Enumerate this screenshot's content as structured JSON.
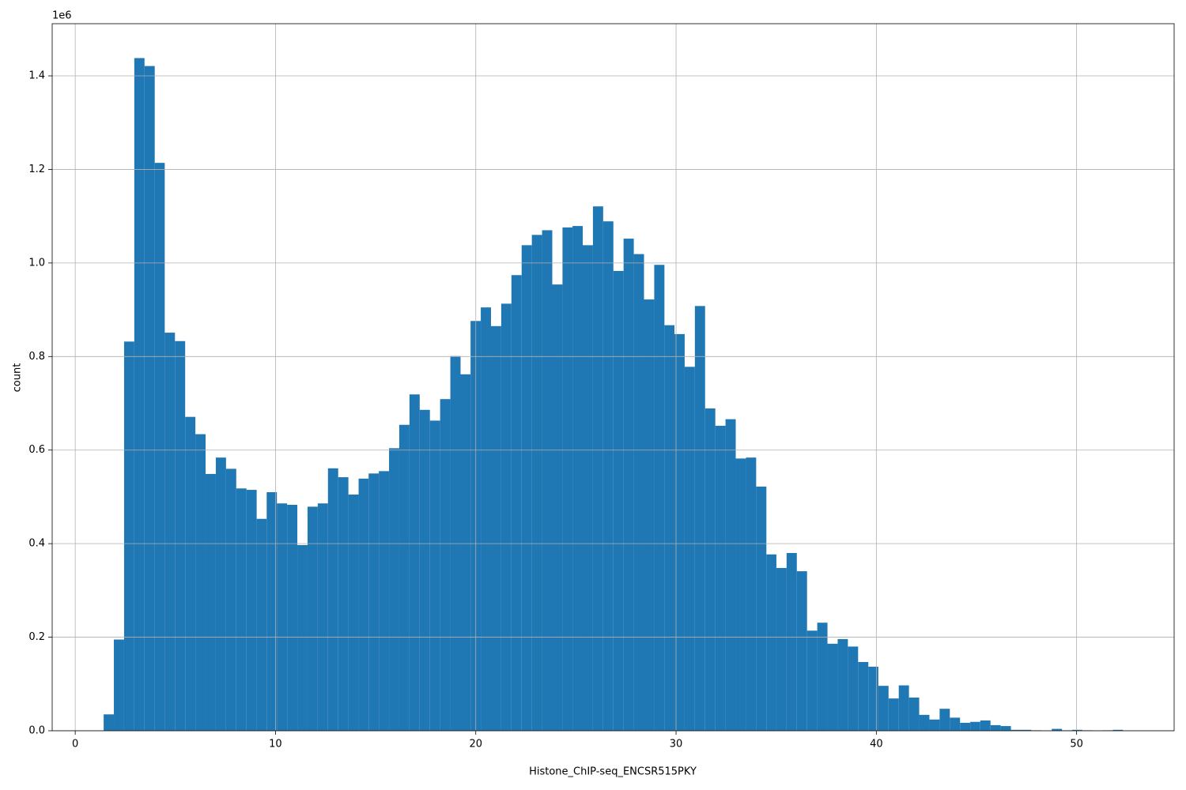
{
  "chart_data": {
    "type": "histogram",
    "xlabel": "Histone_ChIP-seq_ENCSR515PKY",
    "ylabel": "count",
    "offset_label": "1e6",
    "color": "#1f77b4",
    "grid": true,
    "xlim": [
      -1.15,
      54.87
    ],
    "ylim": [
      0,
      1511500
    ],
    "xticks": [
      0,
      10,
      20,
      30,
      40,
      50
    ],
    "yticks": [
      {
        "value": 0,
        "label": "0.0"
      },
      {
        "value": 200000,
        "label": "0.2"
      },
      {
        "value": 400000,
        "label": "0.4"
      },
      {
        "value": 600000,
        "label": "0.6"
      },
      {
        "value": 800000,
        "label": "0.8"
      },
      {
        "value": 1000000,
        "label": "1.0"
      },
      {
        "value": 1200000,
        "label": "1.2"
      },
      {
        "value": 1400000,
        "label": "1.4"
      }
    ],
    "bins": [
      1.42,
      1.93,
      2.44,
      2.95,
      3.46,
      3.97,
      4.47,
      4.98,
      5.49,
      6.0,
      6.51,
      7.02,
      7.53,
      8.04,
      8.55,
      9.06,
      9.56,
      10.07,
      10.58,
      11.09,
      11.6,
      12.11,
      12.62,
      13.13,
      13.64,
      14.15,
      14.65,
      15.16,
      15.67,
      16.18,
      16.69,
      17.2,
      17.71,
      18.22,
      18.73,
      19.24,
      19.74,
      20.25,
      20.76,
      21.27,
      21.78,
      22.29,
      22.8,
      23.31,
      23.82,
      24.33,
      24.83,
      25.34,
      25.85,
      26.36,
      26.87,
      27.38,
      27.89,
      28.4,
      28.91,
      29.42,
      29.92,
      30.43,
      30.94,
      31.45,
      31.96,
      32.47,
      32.98,
      33.49,
      34.0,
      34.51,
      35.01,
      35.52,
      36.03,
      36.54,
      37.05,
      37.56,
      38.07,
      38.58,
      39.09,
      39.6,
      40.1,
      40.61,
      41.12,
      41.63,
      42.14,
      42.65,
      43.16,
      43.67,
      44.18,
      44.69,
      45.19,
      45.7,
      46.21,
      46.72,
      47.23,
      47.74,
      48.25,
      48.76,
      49.27,
      49.78,
      50.28,
      50.79,
      51.3,
      51.81,
      52.32
    ],
    "values": [
      35000,
      195000,
      832000,
      1438000,
      1421000,
      1214000,
      851000,
      833000,
      671000,
      634000,
      549000,
      584000,
      560000,
      518000,
      515000,
      453000,
      510000,
      486000,
      483000,
      397000,
      479000,
      486000,
      561000,
      542000,
      505000,
      539000,
      550000,
      555000,
      604000,
      654000,
      719000,
      686000,
      663000,
      709000,
      801000,
      762000,
      876000,
      905000,
      865000,
      913000,
      974000,
      1038000,
      1060000,
      1070000,
      954000,
      1076000,
      1079000,
      1038000,
      1121000,
      1089000,
      983000,
      1052000,
      1019000,
      922000,
      996000,
      867000,
      848000,
      778000,
      908000,
      689000,
      652000,
      666000,
      582000,
      584000,
      522000,
      377000,
      348000,
      380000,
      341000,
      214000,
      231000,
      186000,
      196000,
      180000,
      147000,
      137000,
      96000,
      69000,
      97000,
      71000,
      34000,
      24000,
      47000,
      28000,
      17000,
      19000,
      22000,
      12000,
      10000,
      2000,
      2000,
      1000,
      0,
      4000,
      1000,
      2000,
      1000,
      0,
      1000,
      2000
    ]
  }
}
